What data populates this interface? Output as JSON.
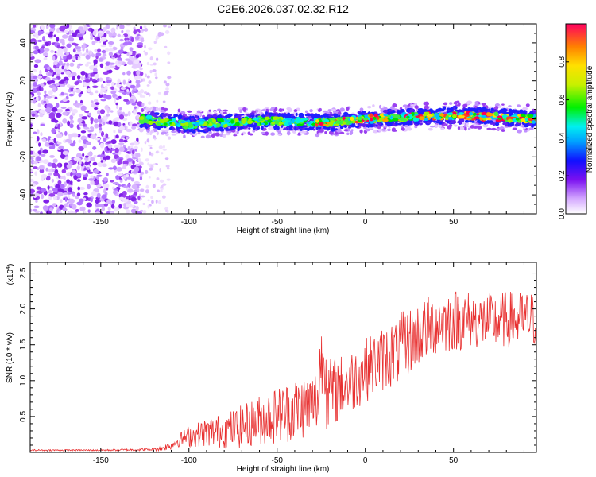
{
  "title": "C2E6.2026.037.02.32.R12",
  "chart_data": [
    {
      "type": "heatmap",
      "title": "C2E6.2026.037.02.32.R12",
      "xlabel": "Height of straight line (km)",
      "ylabel": "Frequency (Hz)",
      "xlim": [
        -190,
        97
      ],
      "ylim": [
        -50,
        50
      ],
      "xticks": [
        -150,
        -100,
        -50,
        0,
        50
      ],
      "yticks": [
        -40,
        -20,
        0,
        20,
        40
      ],
      "colorbar": {
        "label": "Normalized spectral amplitude",
        "range": [
          0,
          1
        ],
        "ticks": [
          "0.0",
          "0.2",
          "0.4",
          "0.6",
          "0.8"
        ]
      },
      "regions": [
        {
          "name": "noise",
          "x_range": [
            -190,
            -127
          ],
          "freq_range": [
            -50,
            50
          ],
          "amplitude": "low-moderate"
        },
        {
          "name": "signal-band",
          "x_range": [
            -127,
            97
          ],
          "freq_center_hz": [
            0,
            -3,
            -1,
            -2,
            0,
            2,
            0
          ],
          "freq_center_x": [
            -127,
            -100,
            -60,
            -20,
            0,
            50,
            97
          ],
          "amplitude": "rising toward 1.0"
        }
      ]
    },
    {
      "type": "line",
      "xlabel": "Height of straight line (km)",
      "ylabel": "SNR (10 * v/v)",
      "y_multiplier": "(x10",
      "y_multiplier_exp": "4",
      "y_multiplier_end": ")",
      "xlim": [
        -190,
        97
      ],
      "ylim": [
        0,
        2.65
      ],
      "xticks": [
        -150,
        -100,
        -50,
        0,
        50
      ],
      "yticks": [
        "0.5",
        "1.0",
        "1.5",
        "2.0",
        "2.5"
      ],
      "series": [
        {
          "name": "SNR",
          "color": "#e83030",
          "x": [
            -190,
            -150,
            -120,
            -115,
            -110,
            -105,
            -100,
            -90,
            -80,
            -70,
            -60,
            -50,
            -40,
            -30,
            -24,
            -20,
            -10,
            0,
            10,
            20,
            30,
            40,
            50,
            60,
            70,
            80,
            90,
            97
          ],
          "mean": [
            0.03,
            0.03,
            0.04,
            0.06,
            0.1,
            0.18,
            0.22,
            0.28,
            0.3,
            0.36,
            0.45,
            0.52,
            0.6,
            0.68,
            0.8,
            0.82,
            0.95,
            1.15,
            1.3,
            1.45,
            1.65,
            1.8,
            1.85,
            1.85,
            1.82,
            1.85,
            1.85,
            1.85
          ],
          "spread": [
            0.01,
            0.01,
            0.02,
            0.04,
            0.06,
            0.1,
            0.15,
            0.2,
            0.25,
            0.3,
            0.35,
            0.4,
            0.45,
            0.45,
            0.5,
            0.5,
            0.45,
            0.45,
            0.45,
            0.5,
            0.45,
            0.45,
            0.45,
            0.4,
            0.4,
            0.4,
            0.4,
            0.4
          ]
        }
      ]
    }
  ]
}
